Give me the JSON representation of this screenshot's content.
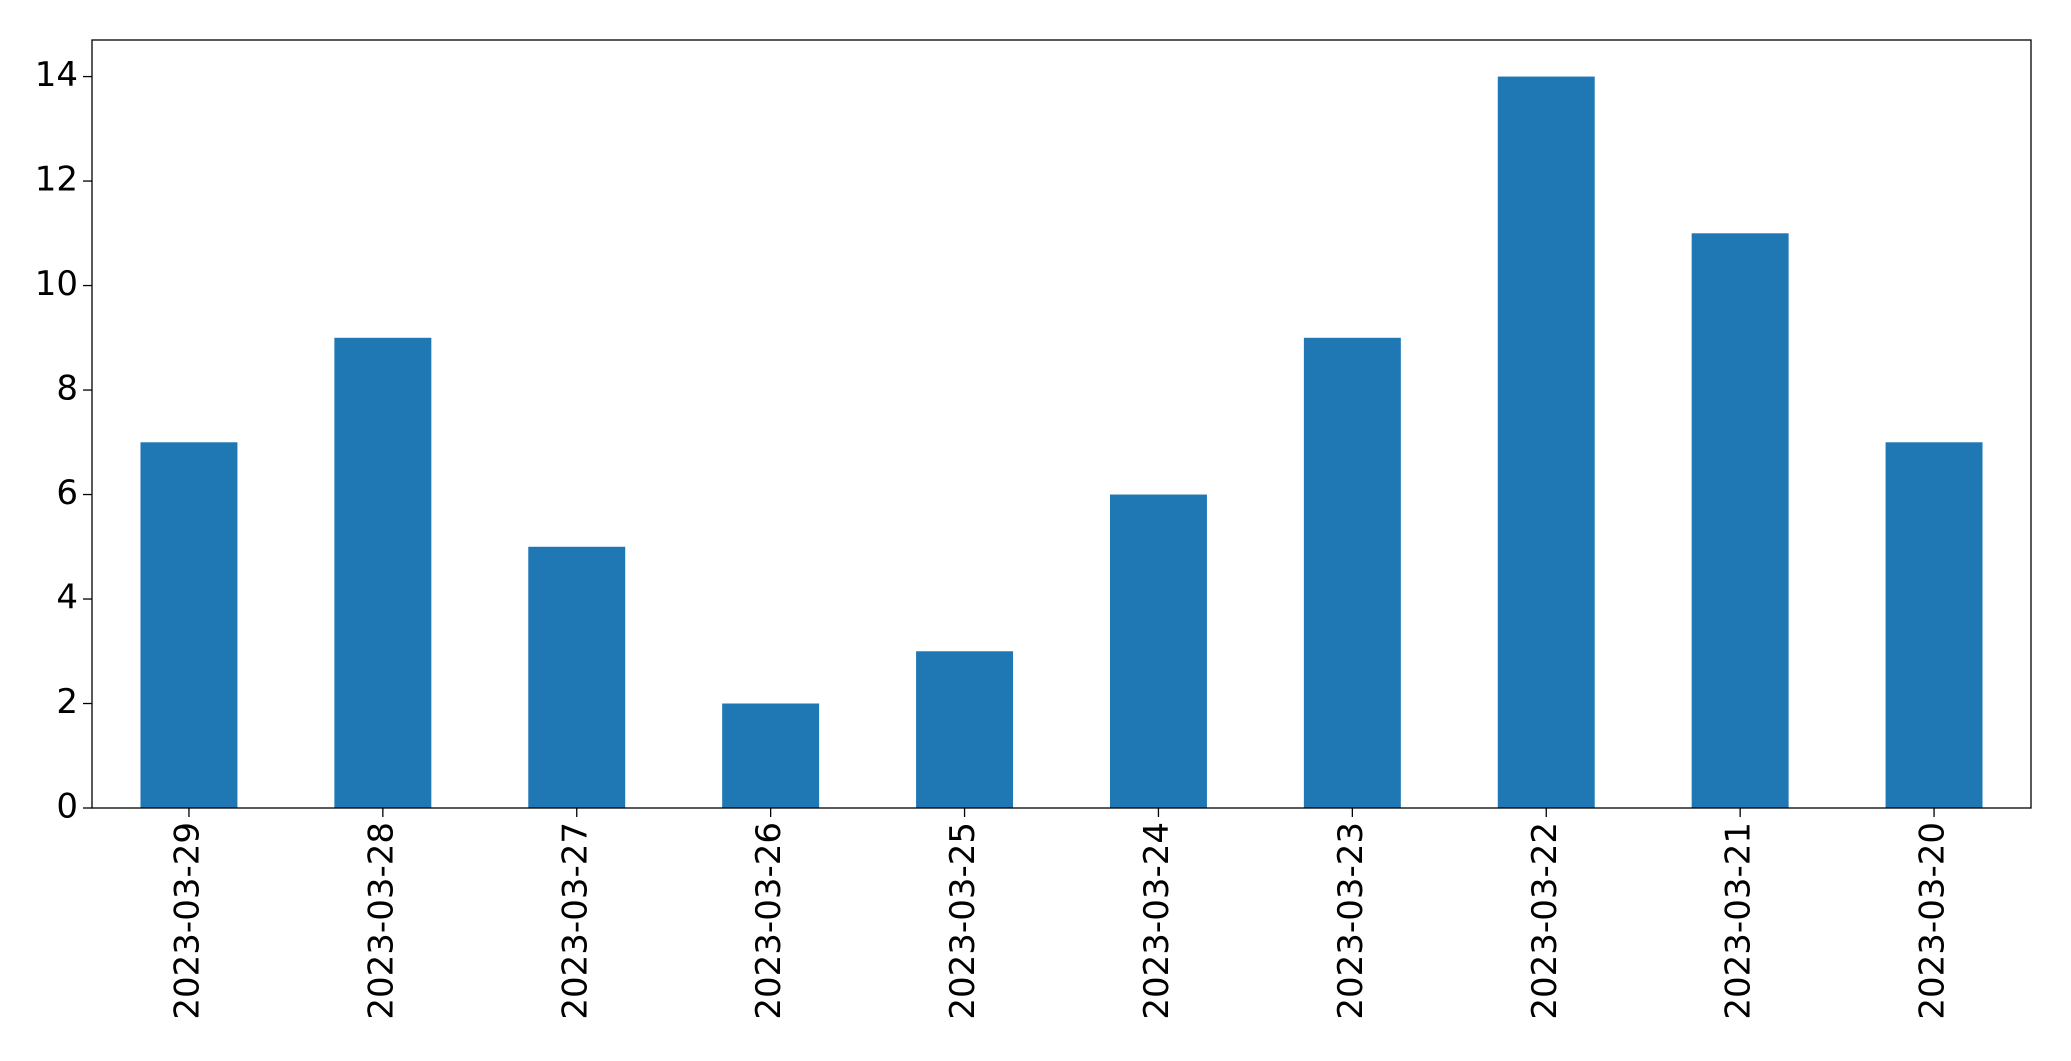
{
  "chart_data": {
    "type": "bar",
    "categories": [
      "2023-03-29",
      "2023-03-28",
      "2023-03-27",
      "2023-03-26",
      "2023-03-25",
      "2023-03-24",
      "2023-03-23",
      "2023-03-22",
      "2023-03-21",
      "2023-03-20"
    ],
    "values": [
      7,
      9,
      5,
      2,
      3,
      6,
      9,
      14,
      11,
      7
    ],
    "color": "#1f77b4",
    "ylim": [
      0,
      14.7
    ],
    "yticks": [
      0,
      2,
      4,
      6,
      8,
      10,
      12,
      14
    ],
    "grid": false
  }
}
